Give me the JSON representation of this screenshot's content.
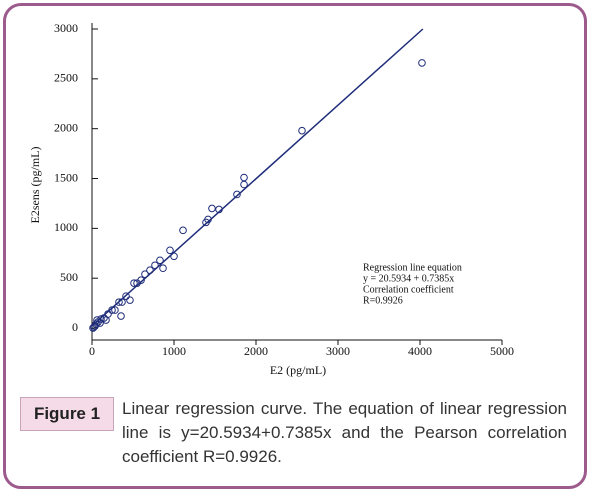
{
  "chart_data": {
    "type": "scatter",
    "x_label": "E2 (pg/mL)",
    "y_label": "E2sens (pg/mL)",
    "xlim": [
      0,
      5000
    ],
    "xticks": [
      0,
      1000,
      2000,
      3000,
      4000,
      5000
    ],
    "ylim": [
      -120,
      3000
    ],
    "yticks": [
      0,
      500,
      1000,
      1500,
      2000,
      2500,
      3000
    ],
    "series": [
      {
        "color": "#1f2d7a",
        "x": [
          4024,
          2561,
          1854,
          1854,
          1768,
          1549,
          1463,
          1390,
          1415,
          1110,
          1000,
          951,
          866,
          829,
          768,
          707,
          646,
          598,
          549,
          512,
          463,
          415,
          366,
          329,
          280,
          354,
          244,
          195,
          146,
          110,
          73,
          49,
          37,
          24,
          12,
          61,
          98,
          171
        ],
        "values": [
          2660,
          1980,
          1510,
          1440,
          1340,
          1190,
          1200,
          1060,
          1090,
          980,
          720,
          780,
          600,
          680,
          630,
          580,
          540,
          480,
          450,
          450,
          280,
          320,
          260,
          260,
          180,
          120,
          180,
          140,
          100,
          90,
          60,
          40,
          20,
          10,
          0,
          80,
          50,
          80
        ]
      },
      {
        "type": "line",
        "color": "#1f2d7a",
        "x": [
          0,
          4035
        ],
        "values": [
          21,
          3000
        ]
      }
    ],
    "annotations": [
      "Regression line equation",
      "y = 20.5934 + 0.7385x",
      "Correlation coefficient",
      "R=0.9926"
    ]
  },
  "figure_label": "Figure 1",
  "caption": "Linear regression curve. The equation of linear regression line is y=20.5934+0.7385x and the Pearson correlation coefficient R=0.9926."
}
